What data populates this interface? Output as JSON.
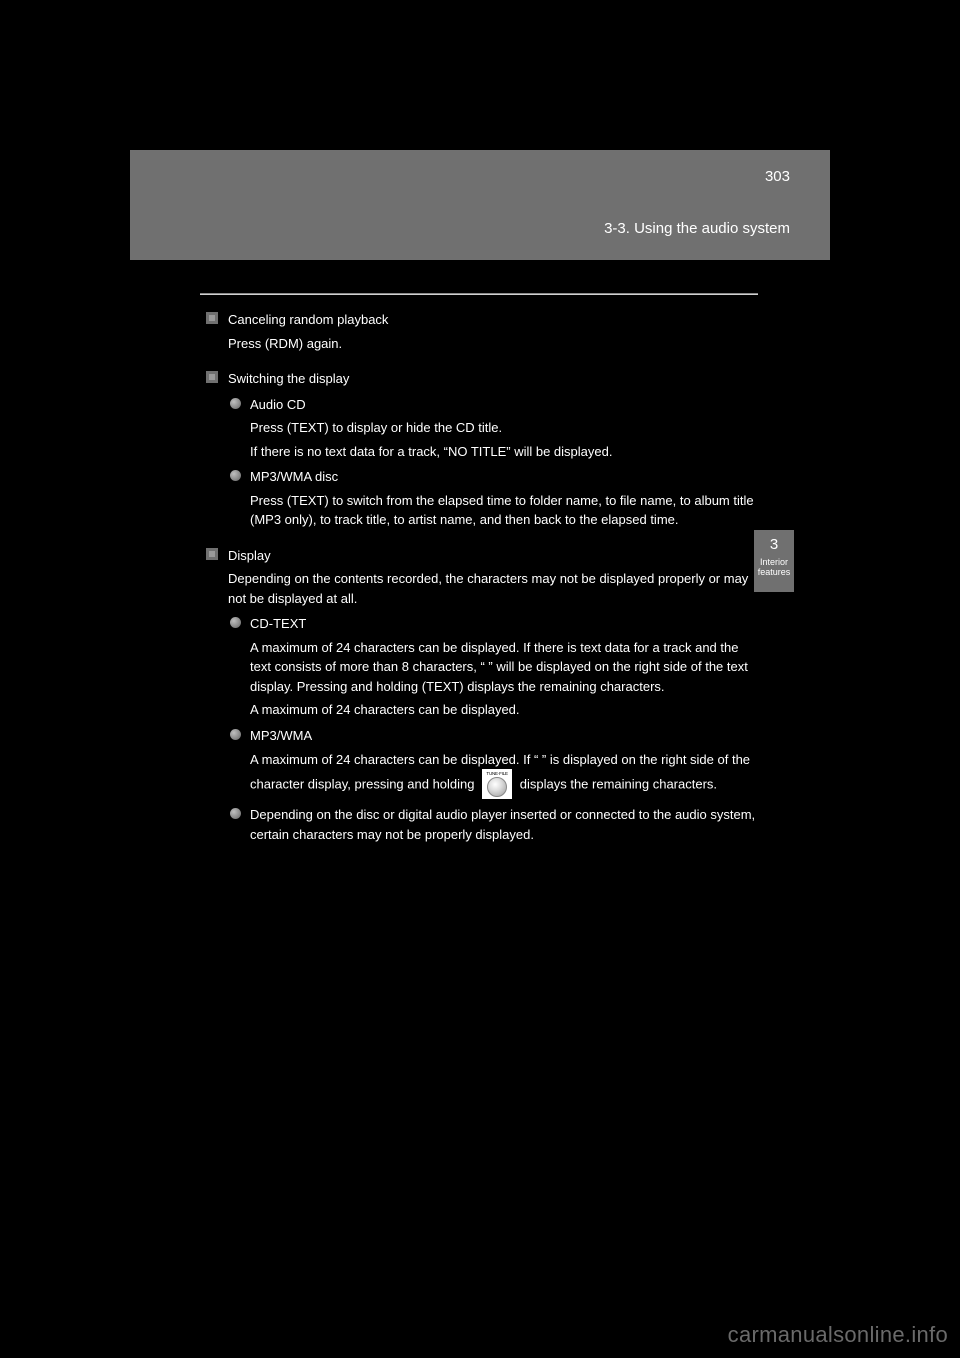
{
  "header": {
    "section_label": "3-3. Using the audio system",
    "page_number": "303"
  },
  "side_tab": {
    "number": "3",
    "caption": "Interior features"
  },
  "blocks": [
    {
      "type": "square",
      "title": "Canceling random playback",
      "body": "Press   (RDM) again."
    },
    {
      "type": "square",
      "title": "Switching the display",
      "bullets": [
        {
          "lead": "Audio CD",
          "body": "Press   (TEXT) to display or hide the CD title.",
          "after": "If there is no text data for a track, “NO TITLE” will be displayed."
        },
        {
          "lead": "MP3/WMA disc",
          "body": "Press   (TEXT) to switch from the elapsed time to folder name, to file name, to album title (MP3 only), to track title, to artist name, and then back to the elapsed time."
        }
      ]
    },
    {
      "type": "square",
      "title": "Display",
      "body": "Depending on the contents recorded, the characters may not be displayed properly or may not be displayed at all.",
      "bullets": [
        {
          "lead": "CD-TEXT",
          "body": "A maximum of 24 characters can be displayed. If there is text data for a track and the text consists of more than 8 characters, “   ” will be displayed on the right side of the text display. Pressing and holding   (TEXT) displays the remaining characters.",
          "after": "A maximum of 24 characters can be displayed."
        },
        {
          "lead": "MP3/WMA",
          "body_before": "A maximum of 24 characters can be displayed. If “   ” is displayed on the right side of the character display, pressing and holding ",
          "body_after": " displays the remaining characters."
        },
        {
          "lead": "Depending on the disc or digital audio player inserted or connected to the audio system, certain characters may not be properly displayed.",
          "body": ""
        }
      ]
    }
  ],
  "knob_label": "TUNE·FILE",
  "watermark": "carmanualsonline.info"
}
